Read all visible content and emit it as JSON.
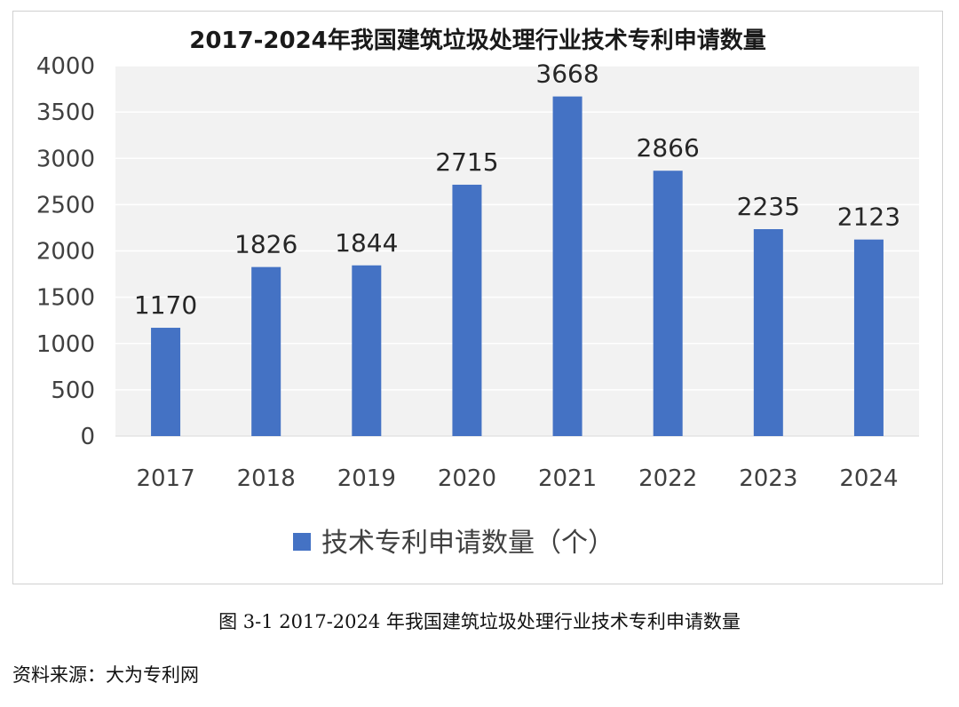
{
  "chart_data": {
    "type": "bar",
    "title": "2017-2024年我国建筑垃圾处理行业技术专利申请数量",
    "categories": [
      "2017",
      "2018",
      "2019",
      "2020",
      "2021",
      "2022",
      "2023",
      "2024"
    ],
    "series": [
      {
        "name": "技术专利申请数量（个）",
        "values": [
          1170,
          1826,
          1844,
          2715,
          3668,
          2866,
          2235,
          2123
        ],
        "color": "#4472C4"
      }
    ],
    "ylim": [
      0,
      4000
    ],
    "yticks": [
      "0",
      "500",
      "1000",
      "1500",
      "2000",
      "2500",
      "3000",
      "3500",
      "4000"
    ],
    "grid": true,
    "legend_position": "bottom",
    "plot_background": "#F2F2F2"
  },
  "caption": "图 3-1 2017-2024 年我国建筑垃圾处理行业技术专利申请数量",
  "source": "资料来源：大为专利网"
}
